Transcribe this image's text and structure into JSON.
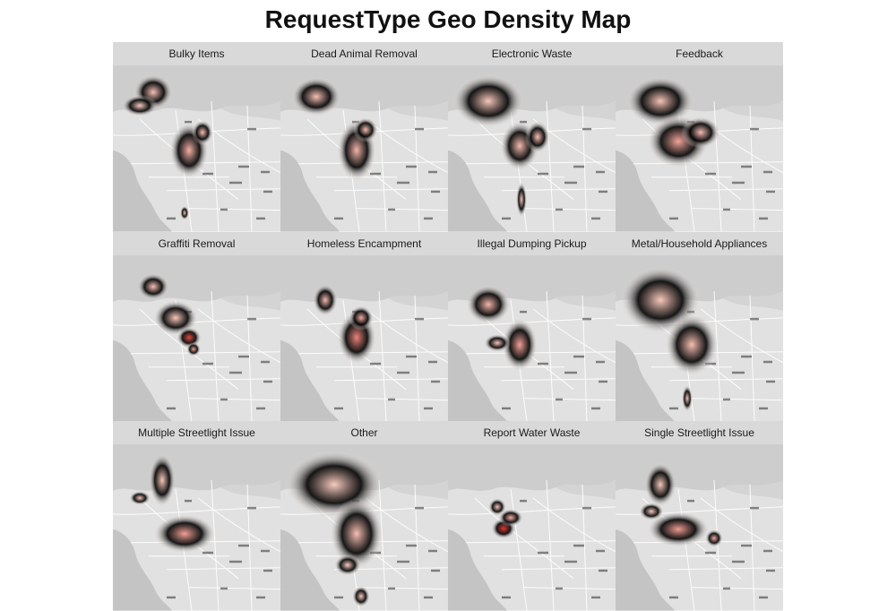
{
  "title": "RequestType Geo Density Map",
  "colors": {
    "strip": "#d9d9d9",
    "land": "#e1e1e1",
    "ocean": "#c4c4c4",
    "hills": "#bdbdbd",
    "roads": "#ffffff",
    "density_low": "#fee0d2",
    "density_high": "#de2d26"
  },
  "panels": [
    {
      "label": "Bulky Items"
    },
    {
      "label": "Dead Animal Removal"
    },
    {
      "label": "Electronic Waste"
    },
    {
      "label": "Feedback"
    },
    {
      "label": "Graffiti Removal"
    },
    {
      "label": "Homeless Encampment"
    },
    {
      "label": "Illegal Dumping Pickup"
    },
    {
      "label": "Metal/Household Appliances"
    },
    {
      "label": "Multiple Streetlight Issue"
    },
    {
      "label": "Other"
    },
    {
      "label": "Report Water Waste"
    },
    {
      "label": "Single Streetlight Issue"
    }
  ]
}
